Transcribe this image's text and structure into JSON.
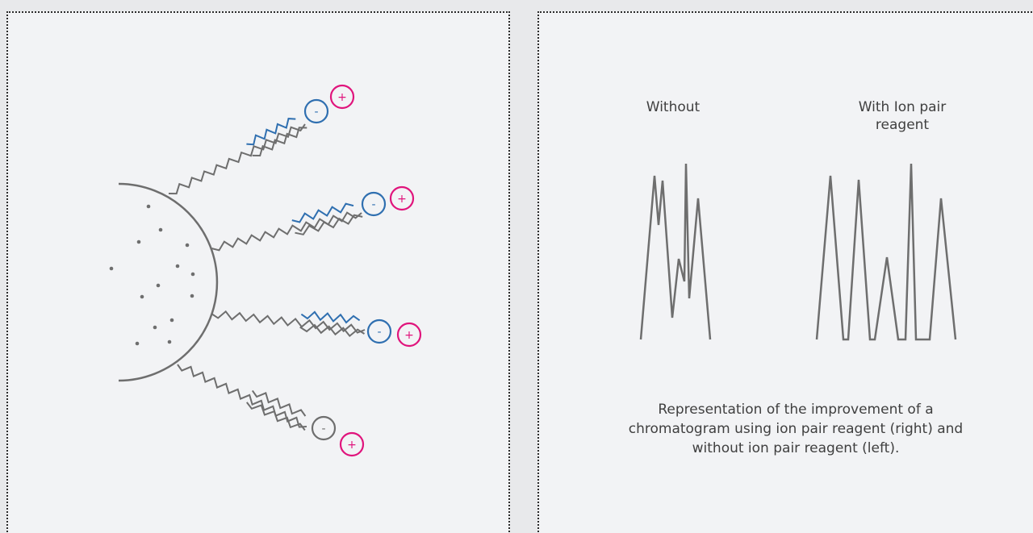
{
  "colors": {
    "gray": "#6e6e6e",
    "blue": "#2f6fb0",
    "magenta": "#e0147c",
    "panel_bg": "#f2f3f5",
    "page_bg": "#e8e9eb"
  },
  "left_panel": {
    "chains": [
      {
        "anion_symbol": "-",
        "cation_symbol": "+",
        "anion_color": "blue"
      },
      {
        "anion_symbol": "-",
        "cation_symbol": "+",
        "anion_color": "blue"
      },
      {
        "anion_symbol": "-",
        "cation_symbol": "+",
        "anion_color": "blue"
      },
      {
        "anion_symbol": "-",
        "cation_symbol": "+",
        "anion_color": "gray"
      }
    ]
  },
  "right_panel": {
    "labels": {
      "without": "Without",
      "with": "With Ion pair reagent"
    },
    "caption": "Representation of the improvement of a chromatogram using ion pair reagent (right) and without ion pair reagent (left)."
  }
}
